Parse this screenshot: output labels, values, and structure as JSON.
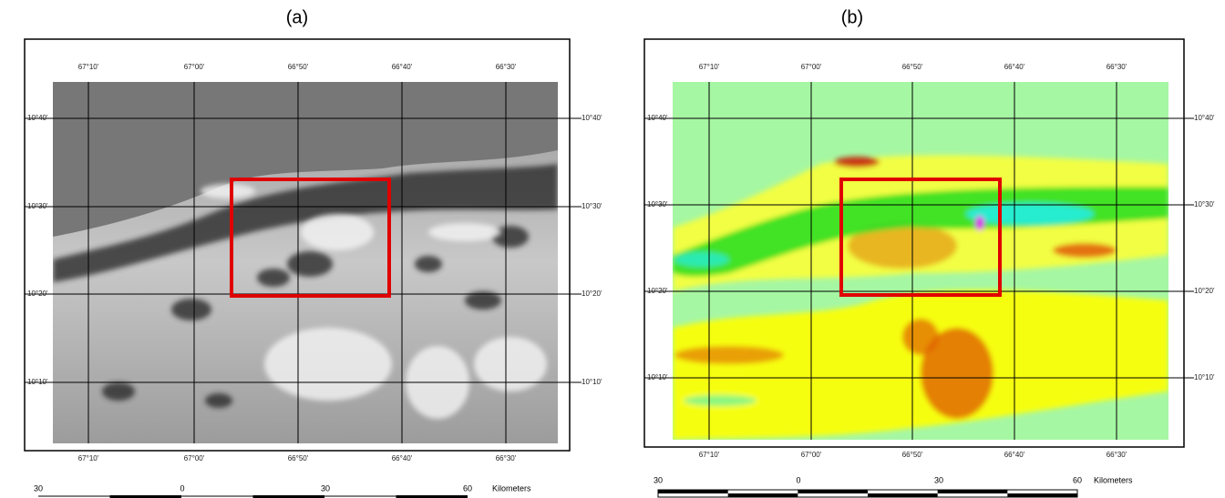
{
  "panels": [
    {
      "label": "(a)",
      "lon_ticks": [
        "67°10'",
        "67°00'",
        "66°50'",
        "66°40'",
        "66°30'"
      ],
      "lat_ticks": [
        "10°40'",
        "10°30'",
        "10°20'",
        "10°10'"
      ],
      "scale_labels": [
        "30",
        "0",
        "30",
        "60"
      ],
      "scale_unit": "Kilometers"
    },
    {
      "label": "(b)",
      "lon_ticks": [
        "67°10'",
        "67°00'",
        "66°50'",
        "66°40'",
        "66°30'"
      ],
      "lat_ticks": [
        "10°40'",
        "10°30'",
        "10°20'",
        "10°10'"
      ],
      "scale_labels": [
        "30",
        "0",
        "30",
        "60"
      ],
      "scale_unit": "Kilometers"
    }
  ]
}
